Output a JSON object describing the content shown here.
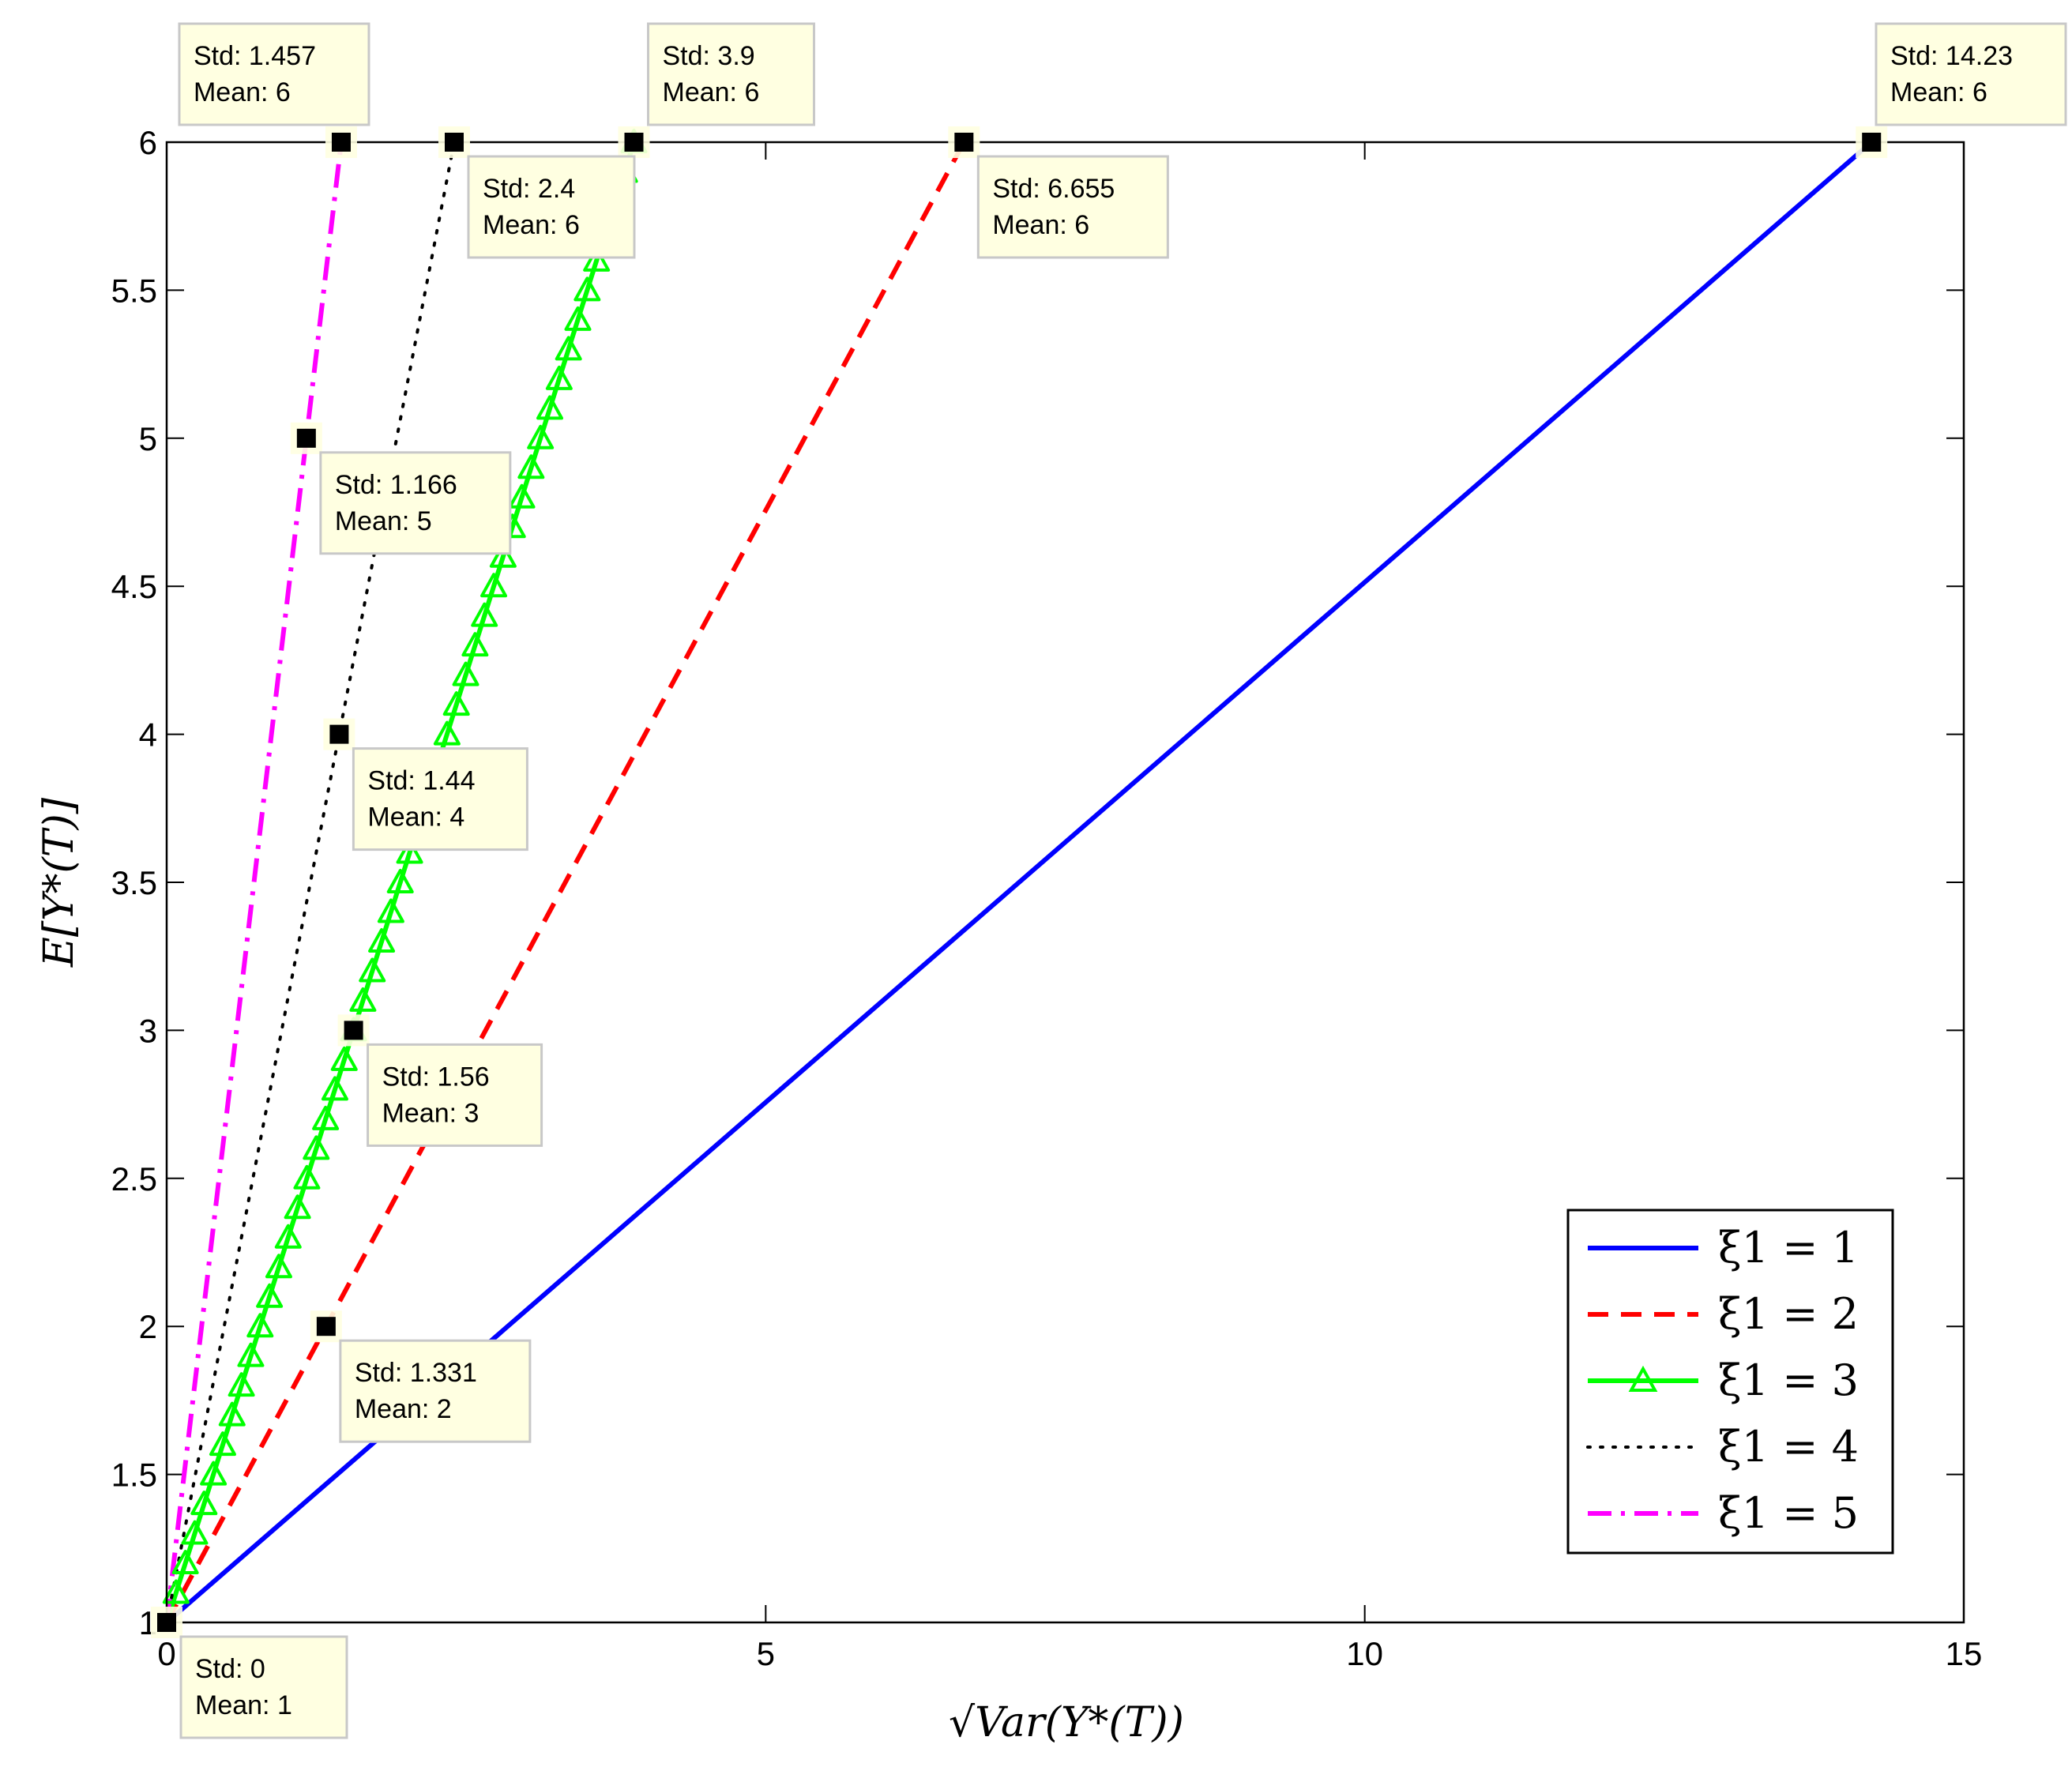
{
  "chart_data": {
    "type": "line",
    "title": "",
    "xlabel": "√Var(Y*(T))",
    "ylabel": "E[Y*(T)]",
    "xlim": [
      0,
      15
    ],
    "ylim": [
      1,
      6
    ],
    "x_ticks": [
      "0",
      "5",
      "10",
      "15"
    ],
    "y_ticks": [
      "1",
      "1.5",
      "2",
      "2.5",
      "3",
      "3.5",
      "4",
      "4.5",
      "5",
      "5.5",
      "6"
    ],
    "grid": false,
    "legend_position": "bottom-right",
    "series": [
      {
        "name": "ξ1 = 1",
        "legend_label": "ξ1 = 1",
        "color": "#0000ff",
        "style": "solid",
        "marker": "none",
        "x": [
          0,
          14.23
        ],
        "y": [
          1,
          6
        ]
      },
      {
        "name": "ξ1 = 2",
        "legend_label": "ξ1 = 2",
        "color": "#ff0000",
        "style": "dashed",
        "marker": "none",
        "x": [
          0,
          1.331,
          6.655
        ],
        "y": [
          1,
          2,
          6
        ]
      },
      {
        "name": "ξ1 = 3",
        "legend_label": "ξ1 = 3",
        "color": "#00ff00",
        "style": "solid",
        "marker": "triangle",
        "x": [
          0,
          1.56,
          3.9
        ],
        "y": [
          1,
          3,
          6
        ]
      },
      {
        "name": "ξ1 = 4",
        "legend_label": "ξ1 = 4",
        "color": "#000000",
        "style": "dotted",
        "marker": "none",
        "x": [
          0,
          1.44,
          2.4
        ],
        "y": [
          1,
          4,
          6
        ]
      },
      {
        "name": "ξ1 = 5",
        "legend_label": "ξ1 = 5",
        "color": "#ff00ff",
        "style": "dashdot",
        "marker": "none",
        "x": [
          0,
          1.166,
          1.457
        ],
        "y": [
          1,
          5,
          6
        ]
      }
    ],
    "datatips": [
      {
        "std": 1.457,
        "mean": 6,
        "std_text": "Std: 1.457",
        "mean_text": "Mean: 6",
        "placement": "up-right"
      },
      {
        "std": 3.9,
        "mean": 6,
        "std_text": "Std: 3.9",
        "mean_text": "Mean: 6",
        "placement": "up-right"
      },
      {
        "std": 14.23,
        "mean": 6,
        "std_text": "Std: 14.23",
        "mean_text": "Mean: 6",
        "placement": "up-right"
      },
      {
        "std": 2.4,
        "mean": 6,
        "std_text": "Std: 2.4",
        "mean_text": "Mean: 6",
        "placement": "down-right"
      },
      {
        "std": 6.655,
        "mean": 6,
        "std_text": "Std: 6.655",
        "mean_text": "Mean: 6",
        "placement": "down-right"
      },
      {
        "std": 1.166,
        "mean": 5,
        "std_text": "Std: 1.166",
        "mean_text": "Mean: 5",
        "placement": "down-right"
      },
      {
        "std": 1.44,
        "mean": 4,
        "std_text": "Std: 1.44",
        "mean_text": "Mean: 4",
        "placement": "down-right"
      },
      {
        "std": 1.56,
        "mean": 3,
        "std_text": "Std: 1.56",
        "mean_text": "Mean: 3",
        "placement": "down-right"
      },
      {
        "std": 1.331,
        "mean": 2,
        "std_text": "Std: 1.331",
        "mean_text": "Mean: 2",
        "placement": "down-right"
      },
      {
        "std": 0,
        "mean": 1,
        "std_text": "Std: 0",
        "mean_text": "Mean: 1",
        "placement": "down-right"
      }
    ]
  }
}
